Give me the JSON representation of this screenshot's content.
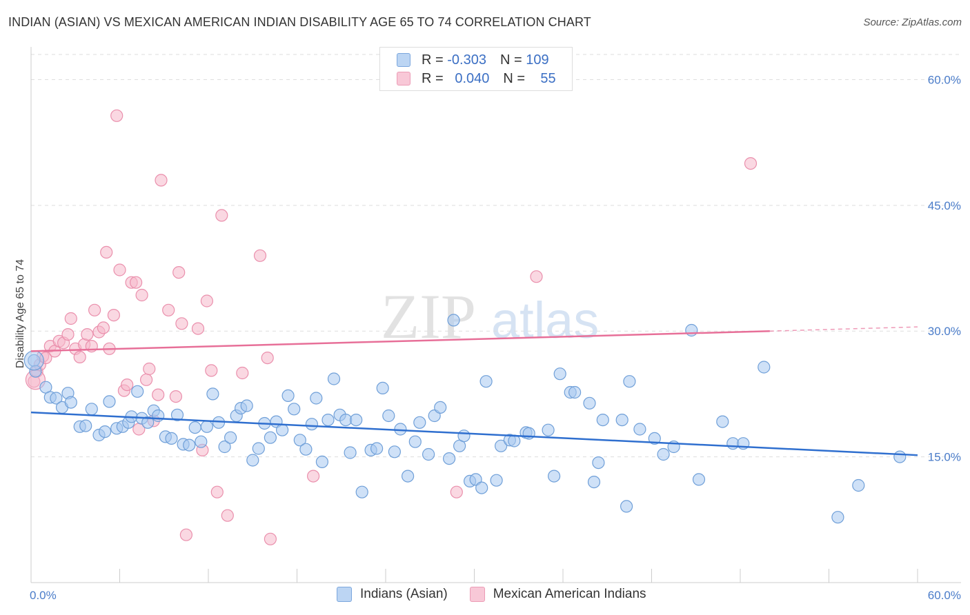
{
  "title": "INDIAN (ASIAN) VS MEXICAN AMERICAN INDIAN DISABILITY AGE 65 TO 74 CORRELATION CHART",
  "source": "Source: ZipAtlas.com",
  "watermark": {
    "zip": "ZIP",
    "atlas": "atlas"
  },
  "legend": {
    "r_label": "R =",
    "n_label": "N =",
    "series1": {
      "r": "-0.303",
      "n": "109"
    },
    "series2": {
      "r": "0.040",
      "n": "55"
    }
  },
  "bottom_legend": {
    "series1": "Indians (Asian)",
    "series2": "Mexican American Indians"
  },
  "colors": {
    "blue_fill": "#a8c8f0",
    "blue_stroke": "#6f9fd8",
    "blue_line": "#2f6fcf",
    "pink_fill": "#f5b8cb",
    "pink_stroke": "#ea8fac",
    "pink_line": "#e76f98",
    "axis_label": "#4a7cc9",
    "grid": "#dddddd"
  },
  "chart_data": {
    "type": "scatter",
    "title": "INDIAN (ASIAN) VS MEXICAN AMERICAN INDIAN DISABILITY AGE 65 TO 74 CORRELATION CHART",
    "xlabel": "",
    "ylabel": "Disability Age 65 to 74",
    "xlim": [
      0,
      60
    ],
    "ylim": [
      0,
      63
    ],
    "x_tick_labels": [
      "0.0%",
      "60.0%"
    ],
    "y_ticks": [
      15,
      30,
      45,
      60
    ],
    "y_tick_labels": [
      "15.0%",
      "30.0%",
      "45.0%",
      "60.0%"
    ],
    "series": [
      {
        "name": "Indians (Asian)",
        "r": -0.303,
        "n": 109,
        "trend": {
          "x": [
            0,
            60
          ],
          "y": [
            20.3,
            15.2
          ]
        },
        "points": [
          [
            0.2,
            26.5
          ],
          [
            0.3,
            25.2
          ],
          [
            1.0,
            23.3
          ],
          [
            1.3,
            22.1
          ],
          [
            1.7,
            22.0
          ],
          [
            2.1,
            20.9
          ],
          [
            2.5,
            22.6
          ],
          [
            2.7,
            21.5
          ],
          [
            3.3,
            18.6
          ],
          [
            3.7,
            18.7
          ],
          [
            4.1,
            20.7
          ],
          [
            4.6,
            17.6
          ],
          [
            5.0,
            18.0
          ],
          [
            5.3,
            21.6
          ],
          [
            5.8,
            18.4
          ],
          [
            6.2,
            18.6
          ],
          [
            6.6,
            19.1
          ],
          [
            6.8,
            19.8
          ],
          [
            7.2,
            22.8
          ],
          [
            7.5,
            19.6
          ],
          [
            7.9,
            19.1
          ],
          [
            8.3,
            20.5
          ],
          [
            8.6,
            19.9
          ],
          [
            9.1,
            17.4
          ],
          [
            9.5,
            17.2
          ],
          [
            9.9,
            20.0
          ],
          [
            10.3,
            16.5
          ],
          [
            10.7,
            16.4
          ],
          [
            11.1,
            18.5
          ],
          [
            11.5,
            16.8
          ],
          [
            11.9,
            18.6
          ],
          [
            12.3,
            22.5
          ],
          [
            12.7,
            19.1
          ],
          [
            13.1,
            16.2
          ],
          [
            13.5,
            17.3
          ],
          [
            13.9,
            19.9
          ],
          [
            14.2,
            20.8
          ],
          [
            14.6,
            21.1
          ],
          [
            15.0,
            14.6
          ],
          [
            15.4,
            16.0
          ],
          [
            15.8,
            19.0
          ],
          [
            16.2,
            17.3
          ],
          [
            16.6,
            19.2
          ],
          [
            17.0,
            18.2
          ],
          [
            17.4,
            22.3
          ],
          [
            17.8,
            20.7
          ],
          [
            18.2,
            17.0
          ],
          [
            18.6,
            15.9
          ],
          [
            19.0,
            18.9
          ],
          [
            19.3,
            22.0
          ],
          [
            19.7,
            14.4
          ],
          [
            20.1,
            19.4
          ],
          [
            20.5,
            24.3
          ],
          [
            20.9,
            20.0
          ],
          [
            21.3,
            19.4
          ],
          [
            21.6,
            15.5
          ],
          [
            22.0,
            19.4
          ],
          [
            22.4,
            10.8
          ],
          [
            23.0,
            15.8
          ],
          [
            23.4,
            16.0
          ],
          [
            23.8,
            23.2
          ],
          [
            24.2,
            19.9
          ],
          [
            24.6,
            15.6
          ],
          [
            25.0,
            18.3
          ],
          [
            25.5,
            12.7
          ],
          [
            26.0,
            16.8
          ],
          [
            26.3,
            19.1
          ],
          [
            26.9,
            15.3
          ],
          [
            27.3,
            19.9
          ],
          [
            27.7,
            20.9
          ],
          [
            28.3,
            14.8
          ],
          [
            28.6,
            31.3
          ],
          [
            29.0,
            16.3
          ],
          [
            29.3,
            17.5
          ],
          [
            29.7,
            12.1
          ],
          [
            30.1,
            12.3
          ],
          [
            30.5,
            11.3
          ],
          [
            30.8,
            24.0
          ],
          [
            31.5,
            12.2
          ],
          [
            31.8,
            16.3
          ],
          [
            32.4,
            17.0
          ],
          [
            32.7,
            16.9
          ],
          [
            33.5,
            17.9
          ],
          [
            33.7,
            17.8
          ],
          [
            35.0,
            18.2
          ],
          [
            35.4,
            12.7
          ],
          [
            35.8,
            24.9
          ],
          [
            36.5,
            22.7
          ],
          [
            36.8,
            22.7
          ],
          [
            37.8,
            21.4
          ],
          [
            38.1,
            12.0
          ],
          [
            38.4,
            14.3
          ],
          [
            38.7,
            19.4
          ],
          [
            40.0,
            19.4
          ],
          [
            40.3,
            9.1
          ],
          [
            40.5,
            24.0
          ],
          [
            41.2,
            18.3
          ],
          [
            42.2,
            17.2
          ],
          [
            42.8,
            15.3
          ],
          [
            43.5,
            16.2
          ],
          [
            44.7,
            30.1
          ],
          [
            45.2,
            12.3
          ],
          [
            46.8,
            19.2
          ],
          [
            47.5,
            16.6
          ],
          [
            48.2,
            16.6
          ],
          [
            49.6,
            25.7
          ],
          [
            54.6,
            7.8
          ],
          [
            56.0,
            11.6
          ],
          [
            58.8,
            15.0
          ]
        ]
      },
      {
        "name": "Mexican American Indians",
        "r": 0.04,
        "n": 55,
        "trend": {
          "x": [
            0,
            50
          ],
          "y": [
            27.6,
            30.0
          ]
        },
        "trend_dashed": {
          "x": [
            50,
            60
          ],
          "y": [
            30.0,
            30.5
          ]
        },
        "points": [
          [
            0.2,
            24.0
          ],
          [
            0.4,
            25.2
          ],
          [
            0.6,
            26.0
          ],
          [
            0.8,
            27.0
          ],
          [
            1.0,
            26.8
          ],
          [
            1.3,
            28.2
          ],
          [
            1.6,
            27.6
          ],
          [
            1.9,
            28.8
          ],
          [
            2.2,
            28.6
          ],
          [
            2.5,
            29.6
          ],
          [
            2.7,
            31.5
          ],
          [
            3.0,
            27.9
          ],
          [
            3.3,
            26.9
          ],
          [
            3.6,
            28.4
          ],
          [
            3.8,
            29.6
          ],
          [
            4.1,
            28.2
          ],
          [
            4.3,
            32.5
          ],
          [
            4.6,
            29.9
          ],
          [
            4.9,
            30.4
          ],
          [
            5.1,
            39.4
          ],
          [
            5.3,
            27.9
          ],
          [
            5.6,
            31.9
          ],
          [
            5.8,
            55.7
          ],
          [
            6.0,
            37.3
          ],
          [
            6.3,
            22.9
          ],
          [
            6.5,
            23.6
          ],
          [
            6.8,
            35.8
          ],
          [
            7.1,
            35.8
          ],
          [
            7.3,
            18.3
          ],
          [
            7.5,
            34.3
          ],
          [
            7.8,
            24.2
          ],
          [
            8.0,
            25.5
          ],
          [
            8.3,
            19.3
          ],
          [
            8.6,
            22.4
          ],
          [
            8.8,
            48.0
          ],
          [
            9.3,
            32.5
          ],
          [
            9.8,
            22.2
          ],
          [
            10.0,
            37.0
          ],
          [
            10.2,
            30.9
          ],
          [
            10.5,
            5.7
          ],
          [
            11.3,
            30.3
          ],
          [
            11.6,
            15.8
          ],
          [
            11.9,
            33.6
          ],
          [
            12.2,
            25.3
          ],
          [
            12.6,
            10.8
          ],
          [
            12.9,
            43.8
          ],
          [
            13.3,
            8.0
          ],
          [
            14.3,
            25.0
          ],
          [
            15.5,
            39.0
          ],
          [
            16.0,
            26.8
          ],
          [
            16.2,
            5.2
          ],
          [
            19.1,
            12.7
          ],
          [
            28.8,
            10.8
          ],
          [
            34.2,
            36.5
          ],
          [
            48.7,
            50.0
          ]
        ]
      }
    ]
  }
}
